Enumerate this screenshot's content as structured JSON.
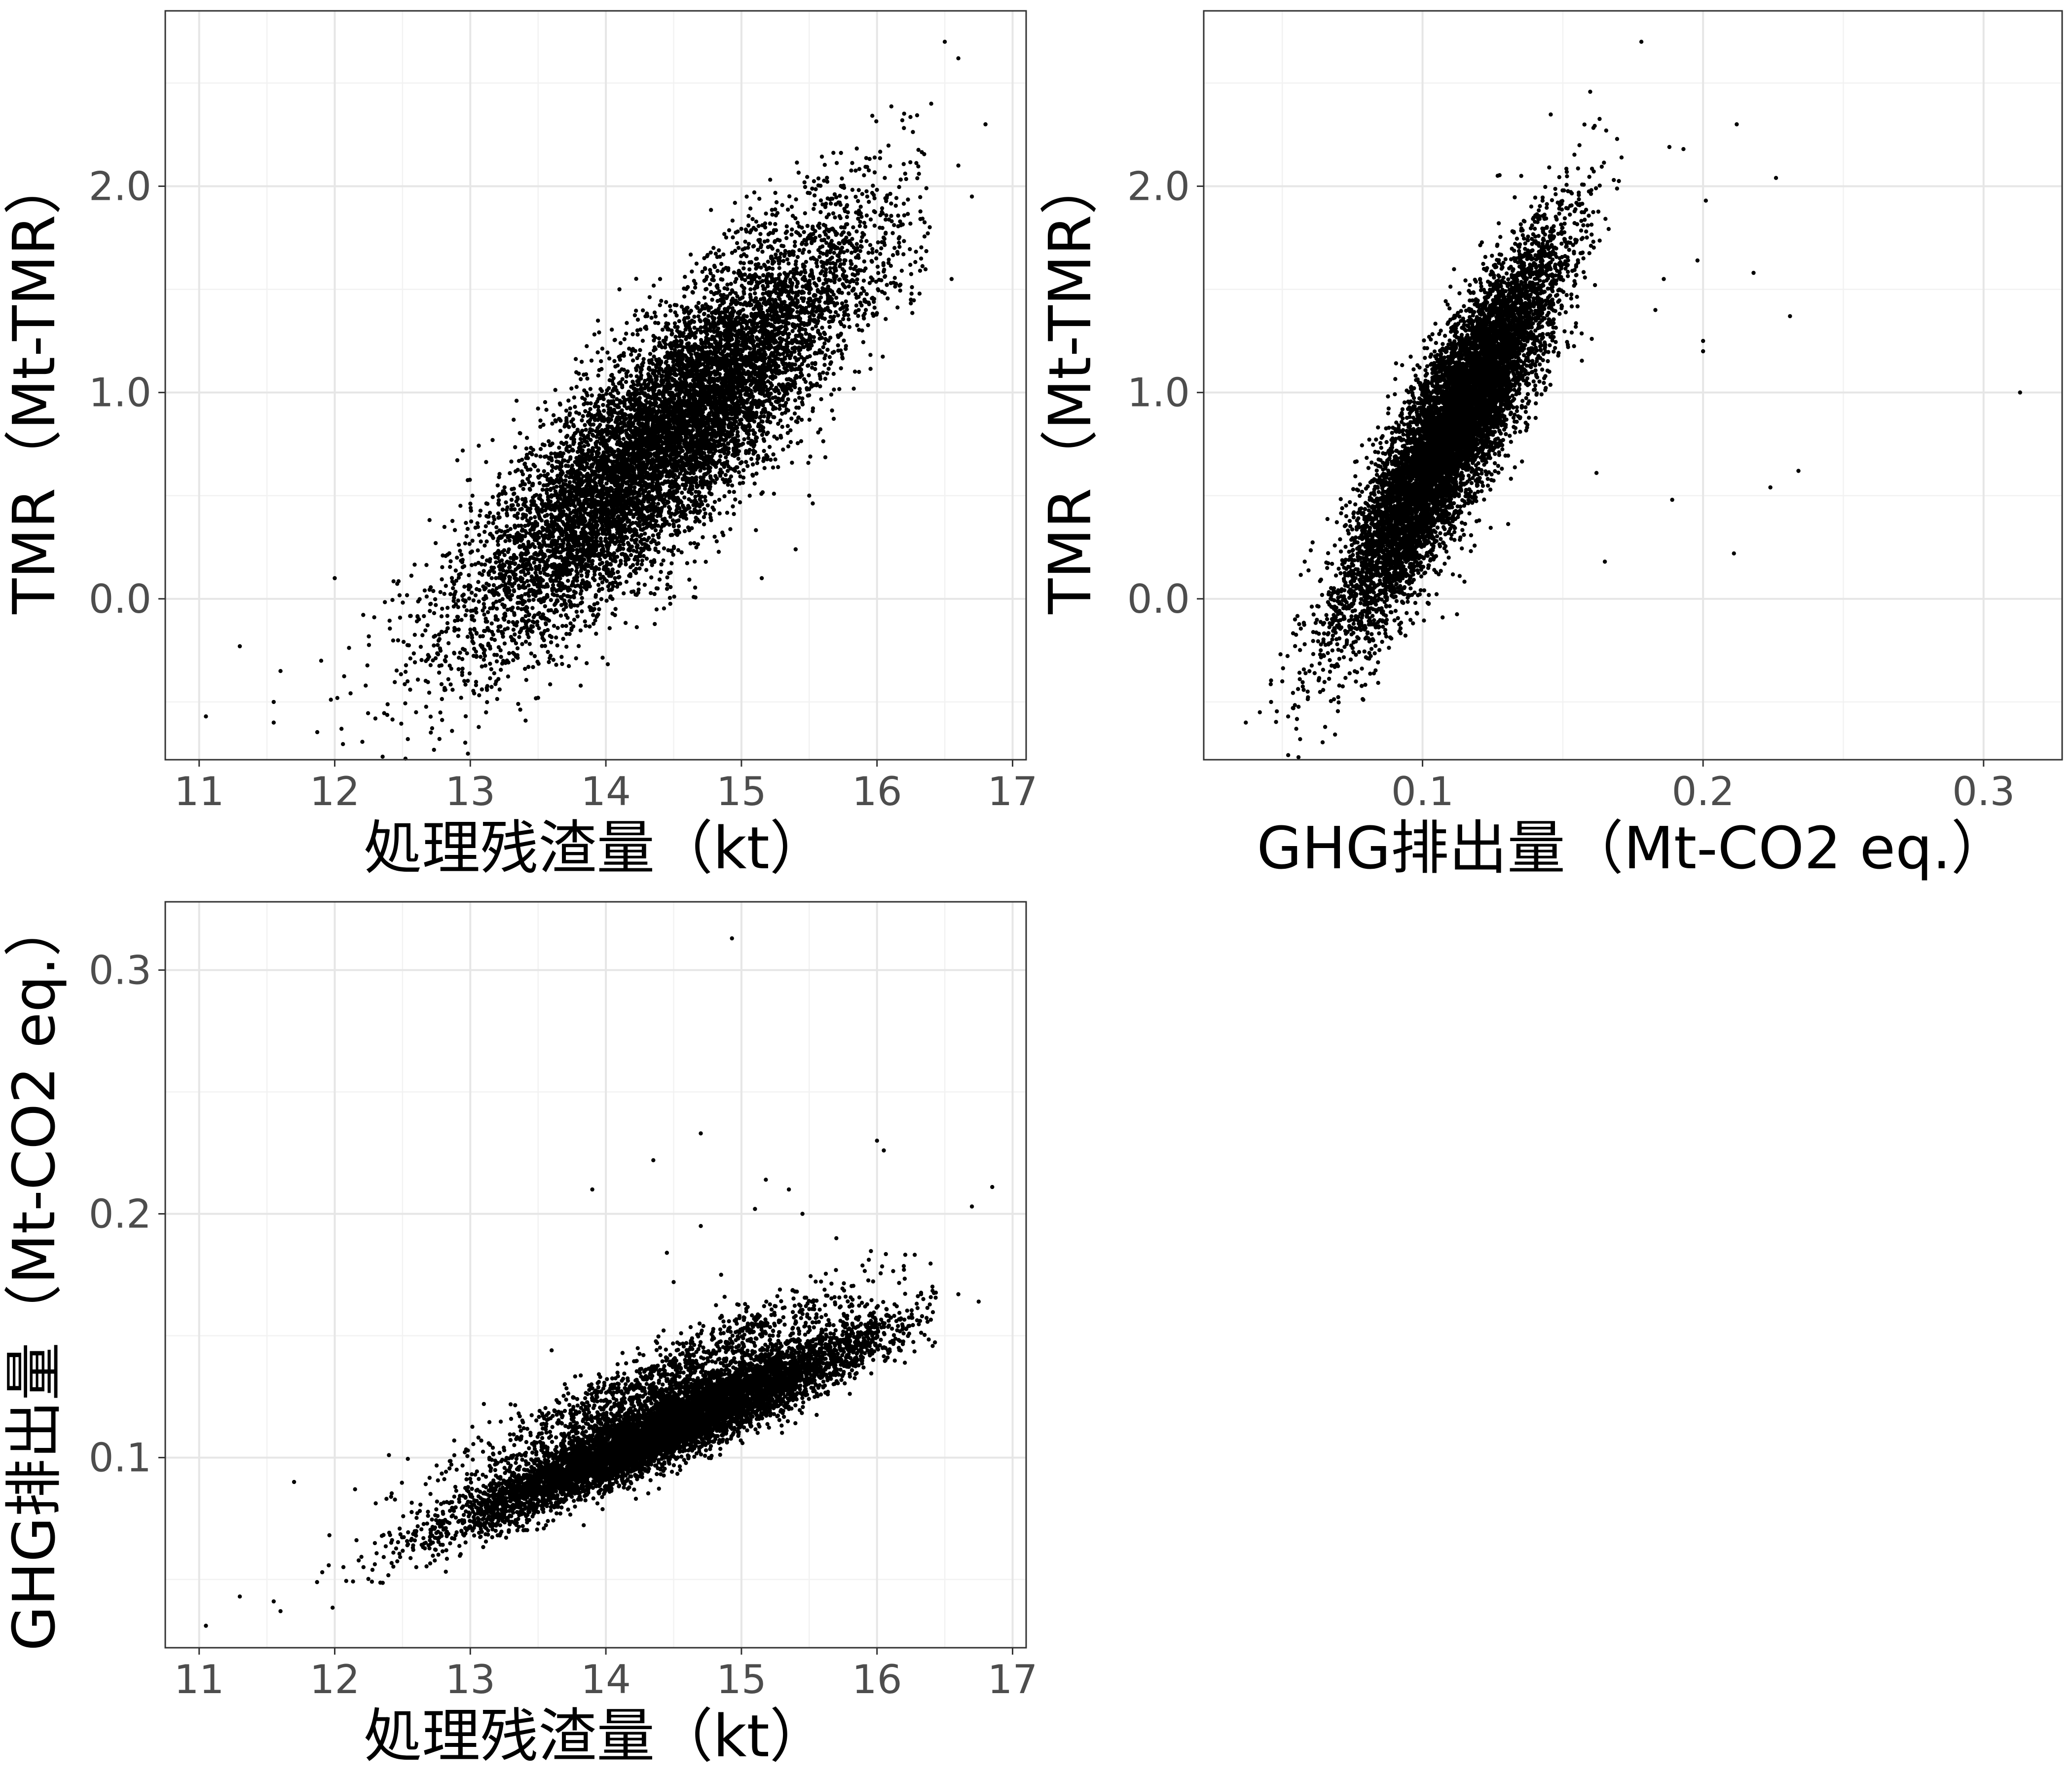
{
  "chart_data": [
    {
      "id": "residue_vs_tmr",
      "type": "scatter",
      "title": "",
      "xlabel": "処理残渣量（kt）",
      "ylabel": "TMR（Mt-TMR）",
      "xlim": [
        10.75,
        17.1
      ],
      "ylim": [
        -0.78,
        2.85
      ],
      "xticks": [
        11,
        12,
        13,
        14,
        15,
        16,
        17
      ],
      "xtick_labels": [
        "11",
        "12",
        "13",
        "14",
        "15",
        "16",
        "17"
      ],
      "yticks": [
        0.0,
        1.0,
        2.0
      ],
      "ytick_labels": [
        "0.0",
        "1.0",
        "2.0"
      ],
      "grid": true,
      "legend": "none",
      "point_color": "#000000",
      "points": [
        [
          11.05,
          -0.57
        ],
        [
          11.3,
          -0.23
        ],
        [
          11.55,
          -0.6
        ],
        [
          11.55,
          -0.5
        ],
        [
          11.6,
          -0.35
        ],
        [
          11.9,
          -0.3
        ],
        [
          12.0,
          0.1
        ],
        [
          12.05,
          -0.63
        ],
        [
          12.3,
          -0.58
        ],
        [
          12.6,
          -0.55
        ],
        [
          13.5,
          -0.48
        ],
        [
          14.1,
          1.5
        ],
        [
          14.4,
          1.55
        ],
        [
          15.15,
          0.1
        ],
        [
          15.4,
          0.24
        ],
        [
          15.5,
          0.5
        ],
        [
          16.25,
          1.45
        ],
        [
          16.4,
          2.4
        ],
        [
          16.5,
          2.7
        ],
        [
          16.6,
          2.62
        ],
        [
          16.7,
          1.95
        ],
        [
          16.8,
          2.3
        ],
        [
          16.55,
          1.55
        ],
        [
          16.6,
          2.1
        ]
      ],
      "cloud": {
        "n": 9500,
        "x_mean": 14.45,
        "x_sd": 0.75,
        "slope": 0.58,
        "intercept": -7.58,
        "resid_sd": 0.27,
        "x_range": [
          11.8,
          16.4
        ]
      }
    },
    {
      "id": "ghg_vs_tmr",
      "type": "scatter",
      "title": "",
      "xlabel": "GHG排出量（Mt-CO2 eq.）",
      "ylabel": "TMR（Mt-TMR）",
      "xlim": [
        0.022,
        0.328
      ],
      "ylim": [
        -0.78,
        2.85
      ],
      "xticks": [
        0.1,
        0.2,
        0.3
      ],
      "xtick_labels": [
        "0.1",
        "0.2",
        "0.3"
      ],
      "yticks": [
        0.0,
        1.0,
        2.0
      ],
      "ytick_labels": [
        "0.0",
        "1.0",
        "2.0"
      ],
      "grid": true,
      "legend": "none",
      "point_color": "#000000",
      "points": [
        [
          0.313,
          1.0
        ],
        [
          0.234,
          0.62
        ],
        [
          0.226,
          2.04
        ],
        [
          0.231,
          1.37
        ],
        [
          0.212,
          2.3
        ],
        [
          0.211,
          0.22
        ],
        [
          0.218,
          1.58
        ],
        [
          0.2,
          1.2
        ],
        [
          0.198,
          1.64
        ],
        [
          0.201,
          1.93
        ],
        [
          0.188,
          2.19
        ],
        [
          0.193,
          2.18
        ],
        [
          0.186,
          1.55
        ],
        [
          0.189,
          0.48
        ],
        [
          0.183,
          1.4
        ],
        [
          0.165,
          0.18
        ],
        [
          0.162,
          0.61
        ],
        [
          0.224,
          0.54
        ],
        [
          0.2,
          1.25
        ],
        [
          0.178,
          2.7
        ],
        [
          0.037,
          -0.6
        ],
        [
          0.042,
          -0.55
        ],
        [
          0.046,
          -0.5
        ],
        [
          0.055,
          -0.63
        ],
        [
          0.05,
          -0.4
        ]
      ],
      "cloud": {
        "n": 9500,
        "x_mean": 0.11,
        "x_sd": 0.019,
        "slope": 21.0,
        "intercept": -1.5,
        "resid_sd": 0.22,
        "x_range": [
          0.045,
          0.2
        ]
      }
    },
    {
      "id": "residue_vs_ghg",
      "type": "scatter",
      "title": "",
      "xlabel": "処理残渣量（kt）",
      "ylabel": "GHG排出量（Mt-CO2 eq.）",
      "xlim": [
        10.75,
        17.1
      ],
      "ylim": [
        0.022,
        0.328
      ],
      "xticks": [
        11,
        12,
        13,
        14,
        15,
        16,
        17
      ],
      "xtick_labels": [
        "11",
        "12",
        "13",
        "14",
        "15",
        "16",
        "17"
      ],
      "yticks": [
        0.1,
        0.2,
        0.3
      ],
      "ytick_labels": [
        "0.1",
        "0.2",
        "0.3"
      ],
      "grid": true,
      "legend": "none",
      "point_color": "#000000",
      "points": [
        [
          11.05,
          0.031
        ],
        [
          11.3,
          0.043
        ],
        [
          11.55,
          0.041
        ],
        [
          11.6,
          0.037
        ],
        [
          11.7,
          0.09
        ],
        [
          12.15,
          0.087
        ],
        [
          12.4,
          0.101
        ],
        [
          13.1,
          0.122
        ],
        [
          13.6,
          0.144
        ],
        [
          13.9,
          0.21
        ],
        [
          14.35,
          0.222
        ],
        [
          14.45,
          0.184
        ],
        [
          14.5,
          0.172
        ],
        [
          14.7,
          0.233
        ],
        [
          14.7,
          0.195
        ],
        [
          14.85,
          0.175
        ],
        [
          14.93,
          0.313
        ],
        [
          15.1,
          0.202
        ],
        [
          15.18,
          0.214
        ],
        [
          15.35,
          0.21
        ],
        [
          15.45,
          0.2
        ],
        [
          15.7,
          0.19
        ],
        [
          16.0,
          0.23
        ],
        [
          16.05,
          0.226
        ],
        [
          16.7,
          0.203
        ],
        [
          16.85,
          0.211
        ],
        [
          16.75,
          0.164
        ],
        [
          16.6,
          0.167
        ]
      ],
      "cloud": {
        "n": 9500,
        "x_mean": 14.45,
        "x_sd": 0.75,
        "slope": 0.0243,
        "intercept": -0.24,
        "resid_sd": 0.0065,
        "skew_up": 0.012,
        "x_range": [
          11.8,
          16.45
        ]
      }
    }
  ]
}
